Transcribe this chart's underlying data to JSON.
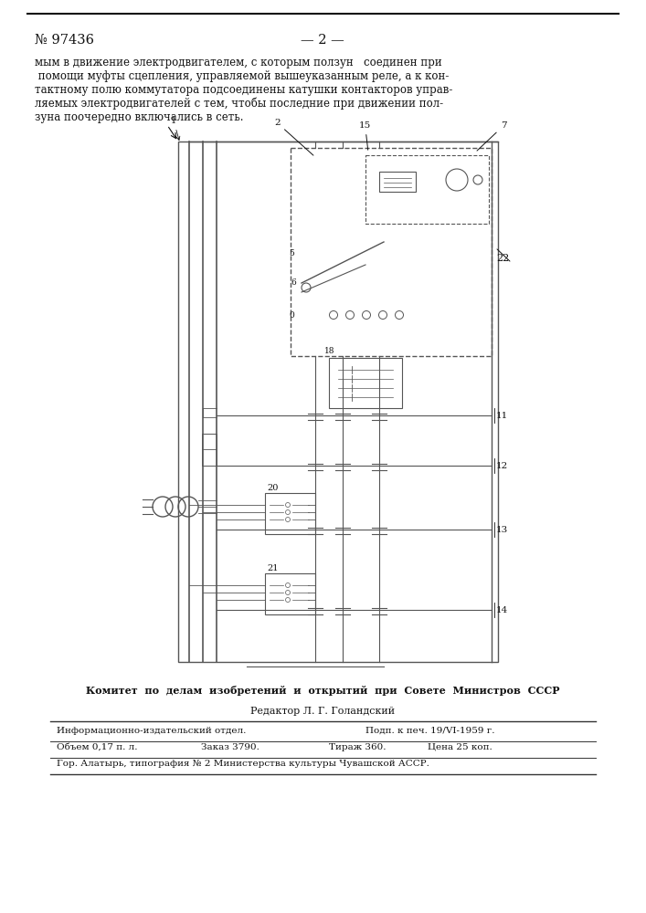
{
  "background_color": "#ffffff",
  "patent_number": "№ 97436",
  "page_number": "— 2 —",
  "body_text": [
    "мым в движение электродвигателем, с которым ползун   соединен при",
    " помощи муфты сцепления, управляемой вышеуказанным реле, а к кон-",
    "тактному полю коммутатора подсоединены катушки контакторов управ-",
    "ляемых электродвигателей с тем, чтобы последние при движении пол-",
    "зуна поочередно включались в сеть."
  ],
  "footer_org": "Комитет  по  делам  изобретений  и  открытий  при  Совете  Министров  СССР",
  "editor_line": "Редактор Л. Г. Голандский",
  "footer_line1_col1": "Информационно-издательский отдел.",
  "footer_line1_col2": "Подп. к печ. 19/VI-1959 г.",
  "footer_line2_col1": "Объем 0,17 п. л.",
  "footer_line2_col2": "Заказ 3790.",
  "footer_line2_col3": "Тираж 360.",
  "footer_line2_col4": "Цена 25 коп.",
  "footer_bottom": "Гор. Алатырь, типография № 2 Министерства культуры Чувашской АССР.",
  "lc": "#555555",
  "tc": "#111111"
}
